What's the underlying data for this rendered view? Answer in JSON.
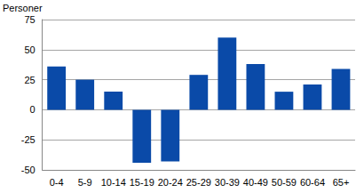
{
  "chart_data": {
    "type": "bar",
    "ylabel": "Personer",
    "categories": [
      "0-4",
      "5-9",
      "10-14",
      "15-19",
      "20-24",
      "25-29",
      "30-39",
      "40-49",
      "50-59",
      "60-64",
      "65+"
    ],
    "values": [
      36,
      25,
      15,
      -44,
      -43,
      29,
      60,
      38,
      15,
      21,
      34
    ],
    "color": "#0a4aa8",
    "ylim": [
      -50,
      75
    ],
    "yticks": [
      -50,
      -25,
      0,
      25,
      50,
      75
    ],
    "grid": true
  }
}
